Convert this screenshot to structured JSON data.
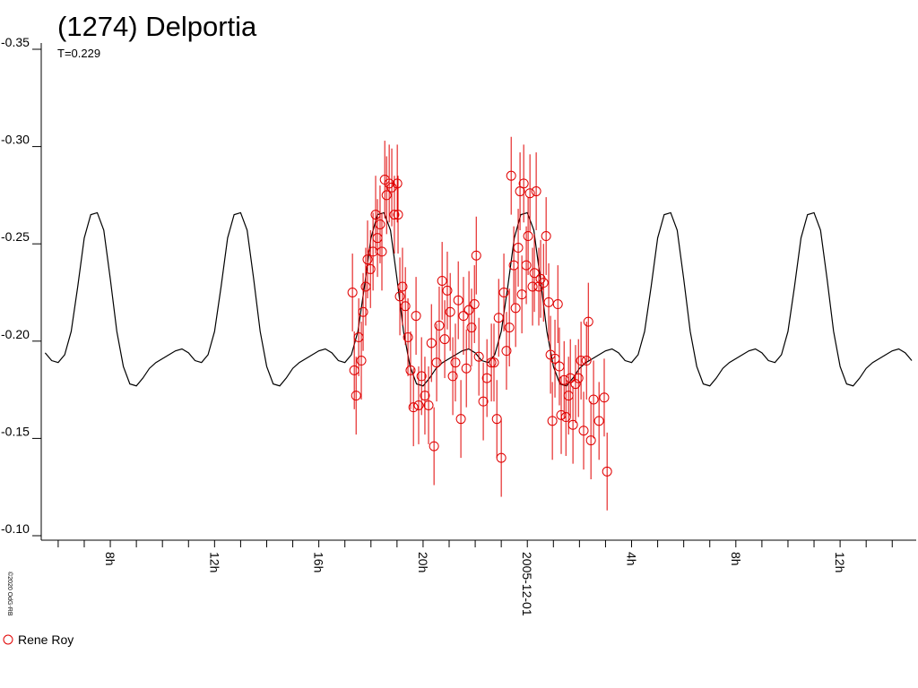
{
  "chart_data": {
    "type": "lightcurve",
    "title": "(1274) Delportia",
    "subtitle": "T=0.229",
    "credit": "©2020 OdG-RB",
    "xlim": [
      5.35,
      38.92
    ],
    "ylim": [
      -0.1,
      -0.35
    ],
    "yticks": [
      -0.35,
      {
        "value": -0.3,
        "label": "-0.30"
      },
      -0.25,
      {
        "value": -0.2,
        "label": "-0.20"
      },
      -0.15,
      {
        "value": -0.1,
        "label": "-0.10"
      }
    ],
    "xticks": [
      {
        "value": 8,
        "label": "8h"
      },
      {
        "value": 12,
        "label": "12h"
      },
      {
        "value": 16,
        "label": "16h"
      },
      {
        "value": 20,
        "label": "20h"
      },
      {
        "value": 24,
        "label": "2005-12-01"
      },
      {
        "value": 28,
        "label": "4h"
      },
      {
        "value": 32,
        "label": "8h"
      },
      {
        "value": 36,
        "label": "12h"
      }
    ],
    "xminorticks": [
      6,
      7,
      9,
      10,
      11,
      13,
      14,
      15,
      17,
      18,
      19,
      21,
      22,
      23,
      25,
      26,
      27,
      29,
      30,
      31,
      33,
      34,
      35,
      37,
      38
    ],
    "curve": {
      "color": "#000000",
      "x": [
        5.5,
        5.75,
        6,
        6.25,
        6.5,
        6.75,
        7,
        7.25,
        7.5,
        7.75,
        8,
        8.25,
        8.5,
        8.75,
        9,
        9.25,
        9.5,
        9.75,
        10,
        10.25,
        10.5,
        10.75,
        11,
        11.25,
        11.5,
        11.75,
        12,
        12.25,
        12.5,
        12.75,
        13,
        13.25,
        13.5,
        13.75,
        14,
        14.25,
        14.5,
        14.75,
        15,
        15.25,
        15.5,
        15.75,
        16,
        16.25,
        16.5,
        16.75,
        17,
        17.25,
        17.5,
        17.75,
        18,
        18.25,
        18.5,
        18.75,
        19,
        19.25,
        19.5,
        19.75,
        20,
        20.25,
        20.5,
        20.75,
        21,
        21.25,
        21.5,
        21.75,
        22,
        22.25,
        22.5,
        22.75,
        23,
        23.25,
        23.5,
        23.75,
        24,
        24.25,
        24.5,
        24.75,
        25,
        25.25,
        25.5,
        25.75,
        26,
        26.25,
        26.5,
        26.75,
        27,
        27.25,
        27.5,
        27.75,
        28,
        28.25,
        28.5,
        28.75,
        29,
        29.25,
        29.5,
        29.75,
        30,
        30.25,
        30.5,
        30.75,
        31,
        31.25,
        31.5,
        31.75,
        32,
        32.25,
        32.5,
        32.75,
        33,
        33.25,
        33.5,
        33.75,
        34,
        34.25,
        34.5,
        34.75,
        35,
        35.25,
        35.5,
        35.75,
        36,
        36.25,
        36.5,
        36.75,
        37,
        37.25,
        37.5,
        37.75,
        38,
        38.25,
        38.5,
        38.75
      ],
      "values": [
        -0.194,
        -0.19,
        -0.189,
        -0.193,
        -0.205,
        -0.228,
        -0.253,
        -0.265,
        -0.266,
        -0.257,
        -0.232,
        -0.205,
        -0.187,
        -0.178,
        -0.177,
        -0.181,
        -0.186,
        -0.189,
        -0.191,
        -0.193,
        -0.195,
        -0.196,
        -0.194,
        -0.19,
        -0.189,
        -0.193,
        -0.205,
        -0.228,
        -0.253,
        -0.265,
        -0.266,
        -0.257,
        -0.232,
        -0.205,
        -0.187,
        -0.178,
        -0.177,
        -0.181,
        -0.186,
        -0.189,
        -0.191,
        -0.193,
        -0.195,
        -0.196,
        -0.194,
        -0.19,
        -0.189,
        -0.193,
        -0.205,
        -0.228,
        -0.253,
        -0.265,
        -0.266,
        -0.257,
        -0.232,
        -0.205,
        -0.187,
        -0.178,
        -0.177,
        -0.181,
        -0.186,
        -0.189,
        -0.191,
        -0.193,
        -0.195,
        -0.196,
        -0.194,
        -0.19,
        -0.189,
        -0.193,
        -0.205,
        -0.228,
        -0.253,
        -0.265,
        -0.266,
        -0.257,
        -0.232,
        -0.205,
        -0.187,
        -0.178,
        -0.177,
        -0.181,
        -0.186,
        -0.189,
        -0.191,
        -0.193,
        -0.195,
        -0.196,
        -0.194,
        -0.19,
        -0.189,
        -0.193,
        -0.205,
        -0.228,
        -0.253,
        -0.265,
        -0.266,
        -0.257,
        -0.232,
        -0.205,
        -0.187,
        -0.178,
        -0.177,
        -0.181,
        -0.186,
        -0.189,
        -0.191,
        -0.193,
        -0.195,
        -0.196,
        -0.194,
        -0.19,
        -0.189,
        -0.193,
        -0.205,
        -0.228,
        -0.253,
        -0.265,
        -0.266,
        -0.257,
        -0.232,
        -0.205,
        -0.187,
        -0.178,
        -0.177,
        -0.181,
        -0.186,
        -0.189,
        -0.191,
        -0.193,
        -0.195,
        -0.196,
        -0.194,
        -0.19
      ]
    },
    "series": [
      {
        "name": "Rene Roy",
        "color": "#e00000",
        "error": 0.02,
        "x": [
          17.29,
          17.36,
          17.43,
          17.53,
          17.63,
          17.7,
          17.8,
          17.87,
          17.98,
          18.08,
          18.18,
          18.25,
          18.35,
          18.42,
          18.53,
          18.6,
          18.7,
          18.8,
          18.9,
          19.01,
          19.04,
          19.11,
          19.21,
          19.32,
          19.42,
          19.52,
          19.63,
          19.73,
          19.83,
          19.94,
          20.07,
          20.21,
          20.32,
          20.42,
          20.52,
          20.62,
          20.73,
          20.83,
          20.93,
          21.04,
          21.14,
          21.24,
          21.35,
          21.45,
          21.55,
          21.66,
          21.76,
          21.86,
          21.97,
          22.04,
          22.14,
          22.31,
          22.45,
          22.62,
          22.72,
          22.83,
          22.9,
          23.0,
          23.1,
          23.2,
          23.31,
          23.38,
          23.48,
          23.55,
          23.65,
          23.72,
          23.79,
          23.86,
          23.96,
          24.03,
          24.1,
          24.2,
          24.27,
          24.34,
          24.44,
          24.51,
          24.62,
          24.72,
          24.82,
          24.89,
          24.96,
          25.06,
          25.17,
          25.23,
          25.3,
          25.41,
          25.48,
          25.58,
          25.65,
          25.75,
          25.85,
          25.96,
          26.06,
          26.16,
          26.27,
          26.34,
          26.44,
          26.54,
          26.75,
          26.95,
          27.06
        ],
        "values": [
          -0.225,
          -0.185,
          -0.172,
          -0.202,
          -0.19,
          -0.215,
          -0.228,
          -0.242,
          -0.237,
          -0.246,
          -0.265,
          -0.253,
          -0.26,
          -0.246,
          -0.283,
          -0.275,
          -0.281,
          -0.279,
          -0.265,
          -0.281,
          -0.265,
          -0.223,
          -0.228,
          -0.218,
          -0.202,
          -0.185,
          -0.166,
          -0.213,
          -0.167,
          -0.182,
          -0.172,
          -0.167,
          -0.199,
          -0.146,
          -0.189,
          -0.208,
          -0.231,
          -0.201,
          -0.226,
          -0.215,
          -0.182,
          -0.189,
          -0.221,
          -0.16,
          -0.213,
          -0.186,
          -0.216,
          -0.207,
          -0.219,
          -0.244,
          -0.192,
          -0.169,
          -0.181,
          -0.189,
          -0.189,
          -0.16,
          -0.212,
          -0.14,
          -0.225,
          -0.195,
          -0.207,
          -0.285,
          -0.239,
          -0.217,
          -0.248,
          -0.277,
          -0.224,
          -0.281,
          -0.239,
          -0.254,
          -0.276,
          -0.228,
          -0.235,
          -0.277,
          -0.228,
          -0.232,
          -0.23,
          -0.254,
          -0.22,
          -0.193,
          -0.159,
          -0.191,
          -0.219,
          -0.187,
          -0.162,
          -0.18,
          -0.161,
          -0.172,
          -0.181,
          -0.157,
          -0.178,
          -0.181,
          -0.19,
          -0.154,
          -0.19,
          -0.21,
          -0.149,
          -0.17,
          -0.159,
          -0.171,
          -0.133
        ]
      }
    ]
  }
}
